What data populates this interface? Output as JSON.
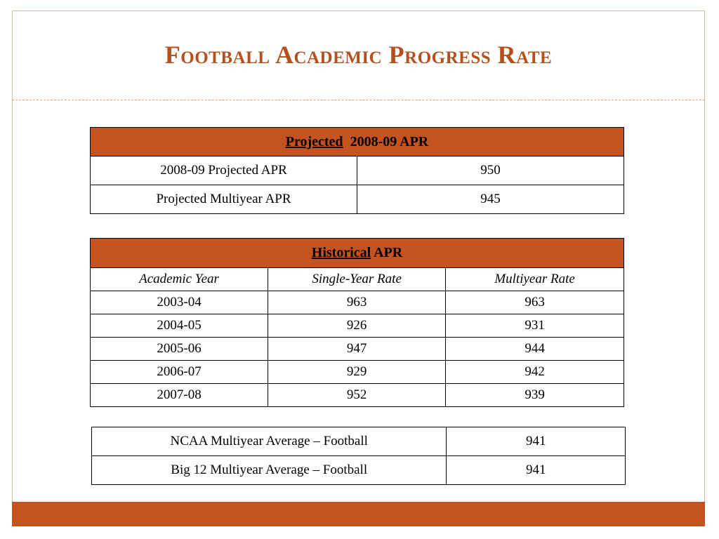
{
  "title": "Football Academic Progress Rate",
  "projected": {
    "header_underlined": "Projected",
    "header_rest": "2008-09 APR",
    "rows": [
      {
        "label": "2008-09 Projected APR",
        "value": "950"
      },
      {
        "label": "Projected Multiyear APR",
        "value": "945"
      }
    ]
  },
  "historical": {
    "header_underlined": "Historical",
    "header_rest": "APR",
    "columns": [
      "Academic Year",
      "Single-Year Rate",
      "Multiyear Rate"
    ],
    "rows": [
      {
        "year": "2003-04",
        "single": "963",
        "multi": "963"
      },
      {
        "year": "2004-05",
        "single": "926",
        "multi": "931"
      },
      {
        "year": "2005-06",
        "single": "947",
        "multi": "944"
      },
      {
        "year": "2006-07",
        "single": "929",
        "multi": "942"
      },
      {
        "year": "2007-08",
        "single": "952",
        "multi": "939"
      }
    ]
  },
  "averages": {
    "rows": [
      {
        "label": "NCAA Multiyear Average – Football",
        "value": "941"
      },
      {
        "label": "Big 12 Multiyear Average – Football",
        "value": "941"
      }
    ]
  },
  "colors": {
    "accent": "#c5531f",
    "title": "#b5501c"
  }
}
